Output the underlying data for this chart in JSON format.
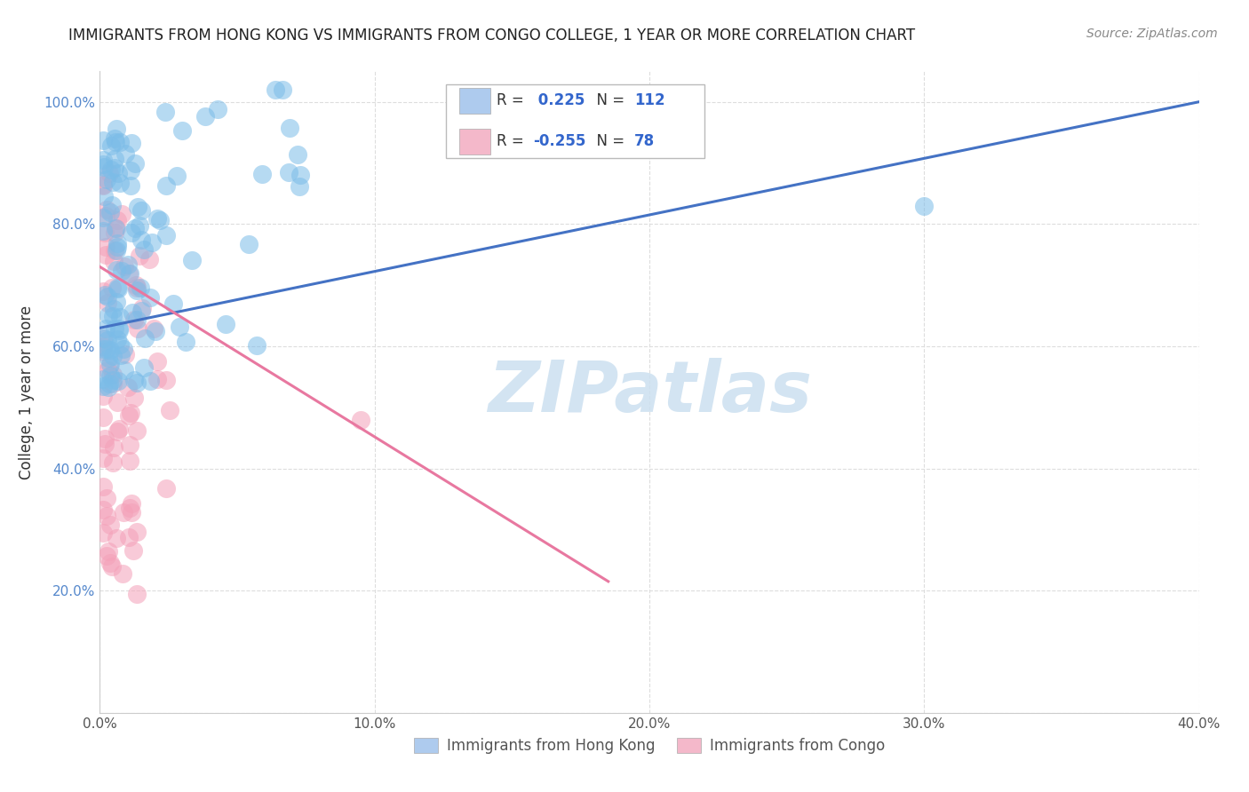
{
  "title": "IMMIGRANTS FROM HONG KONG VS IMMIGRANTS FROM CONGO COLLEGE, 1 YEAR OR MORE CORRELATION CHART",
  "source": "Source: ZipAtlas.com",
  "ylabel": "College, 1 year or more",
  "xlim": [
    0.0,
    0.4
  ],
  "ylim": [
    0.0,
    1.05
  ],
  "xtick_vals": [
    0.0,
    0.1,
    0.2,
    0.3,
    0.4
  ],
  "ytick_vals": [
    0.0,
    0.2,
    0.4,
    0.6,
    0.8,
    1.0
  ],
  "ytick_labels": [
    "",
    "20.0%",
    "40.0%",
    "60.0%",
    "80.0%",
    "100.0%"
  ],
  "xtick_labels": [
    "0.0%",
    "10.0%",
    "20.0%",
    "30.0%",
    "40.0%"
  ],
  "hk_R": 0.225,
  "hk_N": 112,
  "congo_R": -0.255,
  "congo_N": 78,
  "hk_scatter_color": "#7bbce8",
  "congo_scatter_color": "#f4a0b8",
  "hk_line_color": "#4472c4",
  "congo_line_color": "#e878a0",
  "hk_line_x0": 0.0,
  "hk_line_y0": 0.63,
  "hk_line_x1": 0.4,
  "hk_line_y1": 1.0,
  "congo_line_x0": 0.0,
  "congo_line_y0": 0.73,
  "congo_line_x1": 0.185,
  "congo_line_y1": 0.215,
  "legend_hk_color": "#aecbee",
  "legend_congo_color": "#f4b8ca",
  "legend_box_color": "#cccccc",
  "watermark_color": "#cce0f0",
  "title_fontsize": 12,
  "source_fontsize": 10,
  "tick_fontsize": 11,
  "ylabel_fontsize": 12,
  "legend_fontsize": 12,
  "bottom_legend_labels": [
    "Immigrants from Hong Kong",
    "Immigrants from Congo"
  ]
}
